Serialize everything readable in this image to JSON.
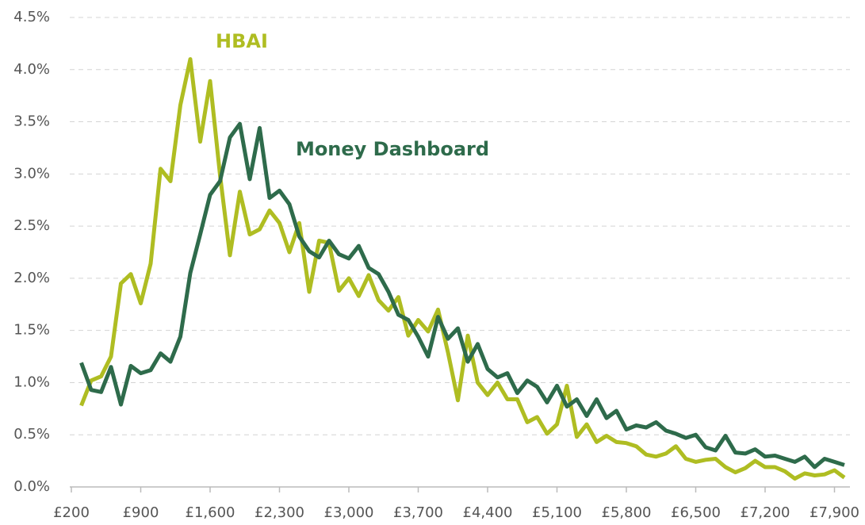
{
  "chart_data": {
    "type": "line",
    "x": [
      300,
      400,
      500,
      600,
      700,
      800,
      900,
      1000,
      1100,
      1200,
      1300,
      1400,
      1500,
      1600,
      1700,
      1800,
      1900,
      2000,
      2100,
      2200,
      2300,
      2400,
      2500,
      2600,
      2700,
      2800,
      2900,
      3000,
      3100,
      3200,
      3300,
      3400,
      3500,
      3600,
      3700,
      3800,
      3900,
      4000,
      4100,
      4200,
      4300,
      4400,
      4500,
      4600,
      4700,
      4800,
      4900,
      5000,
      5100,
      5200,
      5300,
      5400,
      5500,
      5600,
      5700,
      5800,
      5900,
      6000,
      6100,
      6200,
      6300,
      6400,
      6500,
      6600,
      6700,
      6800,
      6900,
      7000,
      7100,
      7200,
      7300,
      7400,
      7500,
      7600,
      7700,
      7800,
      7900,
      8000
    ],
    "series": [
      {
        "name": "HBAI",
        "color": "#afbd22",
        "values": [
          0.78,
          1.02,
          1.06,
          1.25,
          1.95,
          2.04,
          1.76,
          2.14,
          3.05,
          2.93,
          3.66,
          4.1,
          3.31,
          3.89,
          2.99,
          2.22,
          2.83,
          2.42,
          2.47,
          2.65,
          2.53,
          2.25,
          2.53,
          1.87,
          2.36,
          2.34,
          1.88,
          2.0,
          1.83,
          2.03,
          1.79,
          1.69,
          1.82,
          1.45,
          1.6,
          1.49,
          1.7,
          1.29,
          0.83,
          1.45,
          1.0,
          0.88,
          1.0,
          0.84,
          0.84,
          0.62,
          0.67,
          0.51,
          0.6,
          0.97,
          0.48,
          0.6,
          0.43,
          0.49,
          0.43,
          0.42,
          0.39,
          0.31,
          0.29,
          0.32,
          0.39,
          0.27,
          0.24,
          0.26,
          0.27,
          0.19,
          0.14,
          0.18,
          0.25,
          0.19,
          0.19,
          0.15,
          0.08,
          0.13,
          0.11,
          0.12,
          0.16,
          0.09
        ]
      },
      {
        "name": "Money Dashboard",
        "color": "#2e6b4b",
        "values": [
          1.19,
          0.93,
          0.91,
          1.15,
          0.79,
          1.16,
          1.09,
          1.12,
          1.28,
          1.2,
          1.44,
          2.05,
          2.42,
          2.8,
          2.93,
          3.35,
          3.48,
          2.95,
          3.44,
          2.77,
          2.84,
          2.71,
          2.4,
          2.26,
          2.2,
          2.36,
          2.23,
          2.19,
          2.31,
          2.1,
          2.04,
          1.87,
          1.65,
          1.6,
          1.44,
          1.25,
          1.63,
          1.42,
          1.52,
          1.2,
          1.37,
          1.13,
          1.05,
          1.09,
          0.9,
          1.02,
          0.96,
          0.81,
          0.97,
          0.77,
          0.84,
          0.68,
          0.84,
          0.66,
          0.73,
          0.55,
          0.59,
          0.57,
          0.62,
          0.54,
          0.51,
          0.47,
          0.5,
          0.38,
          0.35,
          0.49,
          0.33,
          0.32,
          0.36,
          0.29,
          0.3,
          0.27,
          0.24,
          0.29,
          0.19,
          0.27,
          0.24,
          0.21
        ]
      }
    ],
    "xlim": [
      200,
      8000
    ],
    "xticks": [
      {
        "value": 200,
        "label": "£200"
      },
      {
        "value": 900,
        "label": "£900"
      },
      {
        "value": 1600,
        "label": "£1,600"
      },
      {
        "value": 2300,
        "label": "£2,300"
      },
      {
        "value": 3000,
        "label": "£3,000"
      },
      {
        "value": 3700,
        "label": "£3,700"
      },
      {
        "value": 4400,
        "label": "£4,400"
      },
      {
        "value": 5100,
        "label": "£5,100"
      },
      {
        "value": 5800,
        "label": "£5,800"
      },
      {
        "value": 6500,
        "label": "£6,500"
      },
      {
        "value": 7200,
        "label": "£7,200"
      },
      {
        "value": 7900,
        "label": "£7,900"
      }
    ],
    "ylim": [
      0,
      4.5
    ],
    "yticks": [
      {
        "value": 0,
        "label": "0.0%"
      },
      {
        "value": 0.5,
        "label": "0.5%"
      },
      {
        "value": 1,
        "label": "1.0%"
      },
      {
        "value": 1.5,
        "label": "1.5%"
      },
      {
        "value": 2,
        "label": "2.0%"
      },
      {
        "value": 2.5,
        "label": "2.5%"
      },
      {
        "value": 3,
        "label": "3.0%"
      },
      {
        "value": 3.5,
        "label": "3.5%"
      },
      {
        "value": 4,
        "label": "4.0%"
      },
      {
        "value": 4.5,
        "label": "4.5%"
      }
    ],
    "grid": true
  }
}
